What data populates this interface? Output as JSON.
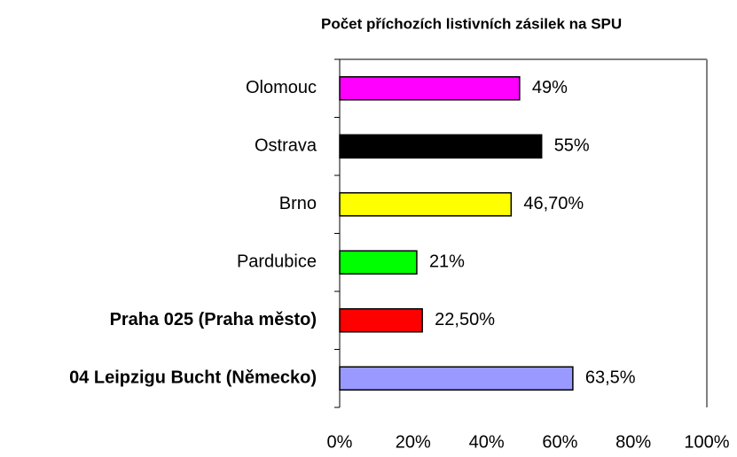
{
  "chart_data": {
    "type": "bar",
    "orientation": "horizontal",
    "title": "Počet příchozích listivních zásilek na SPU",
    "categories": [
      "Olomouc",
      "Ostrava",
      "Brno",
      "Pardubice",
      "Praha 025 (Praha město)",
      "04 Leipzigu Bucht (Německo)"
    ],
    "category_bold": [
      false,
      false,
      false,
      false,
      true,
      true
    ],
    "values": [
      49,
      55,
      46.7,
      21,
      22.5,
      63.5
    ],
    "value_labels": [
      "49%",
      "55%",
      "46,70%",
      "21%",
      "22,50%",
      "63,5%"
    ],
    "colors": [
      "#ff00ff",
      "#000000",
      "#ffff00",
      "#00ff00",
      "#ff0000",
      "#9999ff"
    ],
    "xlim": [
      0,
      100
    ],
    "xticks": [
      {
        "value": 0,
        "label": "0%"
      },
      {
        "value": 20,
        "label": "20%"
      },
      {
        "value": 40,
        "label": "40%"
      },
      {
        "value": 60,
        "label": "60%"
      },
      {
        "value": 80,
        "label": "80%"
      },
      {
        "value": 100,
        "label": "100%"
      }
    ]
  }
}
